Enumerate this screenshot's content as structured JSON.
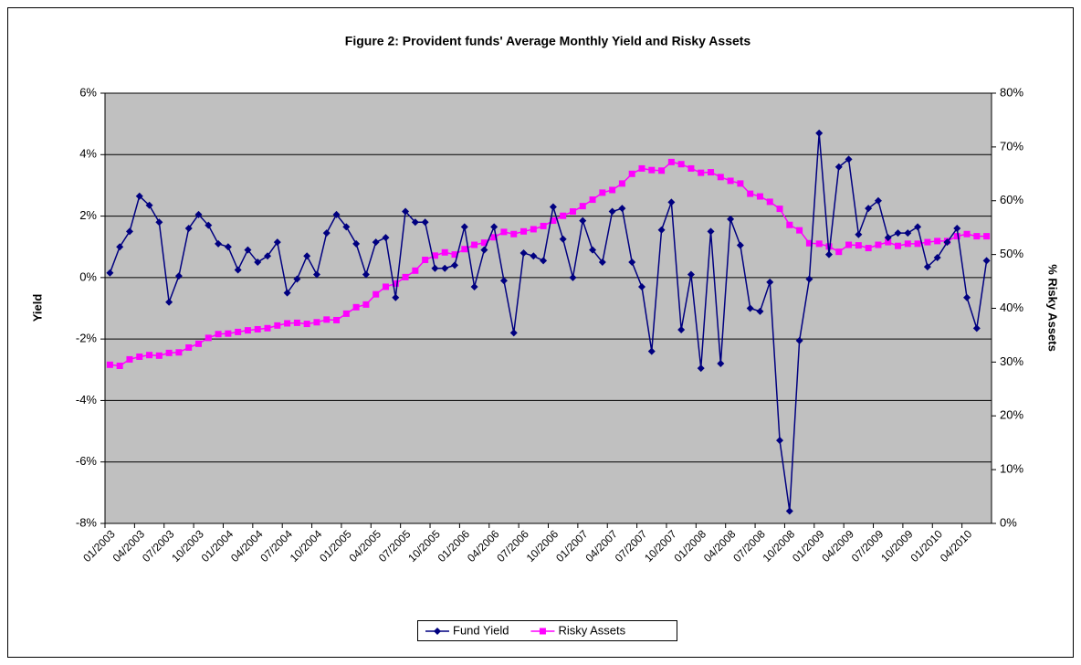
{
  "chart_data": {
    "type": "line",
    "title": "Figure 2: Provident funds' Average Monthly Yield and Risky Assets",
    "y_label": "Yield",
    "y2_label": "% Risky Assets",
    "categories": [
      "01/2003",
      null,
      null,
      "04/2003",
      null,
      null,
      "07/2003",
      null,
      null,
      "10/2003",
      null,
      null,
      "01/2004",
      null,
      null,
      "04/2004",
      null,
      null,
      "07/2004",
      null,
      null,
      "10/2004",
      null,
      null,
      "01/2005",
      null,
      null,
      "04/2005",
      null,
      null,
      "07/2005",
      null,
      null,
      "10/2005",
      null,
      null,
      "01/2006",
      null,
      null,
      "04/2006",
      null,
      null,
      "07/2006",
      null,
      null,
      "10/2006",
      null,
      null,
      "01/2007",
      null,
      null,
      "04/2007",
      null,
      null,
      "07/2007",
      null,
      null,
      "10/2007",
      null,
      null,
      "01/2008",
      null,
      null,
      "04/2008",
      null,
      null,
      "07/2008",
      null,
      null,
      "10/2008",
      null,
      null,
      "01/2009",
      null,
      null,
      "04/2009",
      null,
      null,
      "07/2009",
      null,
      null,
      "10/2009",
      null,
      null,
      "01/2010",
      null,
      null,
      "04/2010",
      null,
      null
    ],
    "series": [
      {
        "name": "Fund Yield",
        "color": "#000080",
        "marker": "diamond",
        "values": [
          0.15,
          1.0,
          1.5,
          2.65,
          2.35,
          1.8,
          -0.8,
          0.05,
          1.6,
          2.05,
          1.7,
          1.1,
          1.0,
          0.25,
          0.9,
          0.5,
          0.7,
          1.15,
          -0.5,
          -0.05,
          0.7,
          0.1,
          1.45,
          2.05,
          1.65,
          1.1,
          0.1,
          1.15,
          1.3,
          -0.65,
          2.15,
          1.8,
          1.8,
          0.3,
          0.3,
          0.4,
          1.65,
          -0.3,
          0.9,
          1.65,
          -0.1,
          -1.8,
          0.8,
          0.7,
          0.55,
          2.3,
          1.25,
          0.0,
          1.85,
          0.9,
          0.5,
          2.15,
          2.25,
          0.5,
          -0.3,
          -2.4,
          1.55,
          2.45,
          -1.7,
          0.1,
          -2.95,
          1.5,
          -2.8,
          1.9,
          1.05,
          -1.0,
          -1.1,
          -0.15,
          -5.3,
          -7.6,
          -2.05,
          -0.05,
          4.7,
          0.75,
          3.6,
          3.85,
          1.4,
          2.25,
          2.5,
          1.3,
          1.45,
          1.45,
          1.65,
          0.35,
          0.65,
          1.15,
          1.6,
          -0.65,
          -1.65,
          0.55
        ]
      },
      {
        "name": "Risky Assets",
        "color": "#ff00ff",
        "marker": "square",
        "axis": "y2",
        "values": [
          29.5,
          29.3,
          30.5,
          31,
          31.3,
          31.2,
          31.7,
          31.8,
          32.7,
          33.4,
          34.5,
          35.2,
          35.3,
          35.6,
          35.9,
          36.1,
          36.3,
          36.8,
          37.2,
          37.3,
          37.1,
          37.4,
          37.9,
          37.8,
          39,
          40.2,
          40.7,
          42.6,
          44,
          44.6,
          45.8,
          47,
          49,
          49.8,
          50.4,
          50,
          51,
          51.8,
          52.2,
          53.2,
          54.2,
          53.8,
          54.3,
          54.7,
          55.3,
          56.3,
          57.2,
          58,
          59,
          60.2,
          61.5,
          62,
          63.2,
          65,
          66,
          65.7,
          65.6,
          67.2,
          66.8,
          66,
          65.2,
          65.3,
          64.4,
          63.7,
          63.2,
          61.3,
          60.8,
          59.8,
          58.5,
          55.5,
          54.5,
          52.1,
          52,
          51.5,
          50.5,
          51.8,
          51.7,
          51.2,
          51.8,
          52.3,
          51.6,
          52,
          52,
          52.3,
          52.5,
          52.5,
          53.4,
          53.8,
          53.4,
          53.4
        ]
      }
    ],
    "ylim": [
      -8,
      6
    ],
    "yticks": [
      {
        "value": -8,
        "label": "-8%"
      },
      {
        "value": -6,
        "label": "-6%"
      },
      {
        "value": -4,
        "label": "-4%"
      },
      {
        "value": -2,
        "label": "-2%"
      },
      {
        "value": 0,
        "label": "0%"
      },
      {
        "value": 2,
        "label": "2%"
      },
      {
        "value": 4,
        "label": "4%"
      },
      {
        "value": 6,
        "label": "6%"
      }
    ],
    "y2lim": [
      0,
      80
    ],
    "y2ticks": [
      {
        "value": 0,
        "label": "0%"
      },
      {
        "value": 10,
        "label": "10%"
      },
      {
        "value": 20,
        "label": "20%"
      },
      {
        "value": 30,
        "label": "30%"
      },
      {
        "value": 40,
        "label": "40%"
      },
      {
        "value": 50,
        "label": "50%"
      },
      {
        "value": 60,
        "label": "60%"
      },
      {
        "value": 70,
        "label": "70%"
      },
      {
        "value": 80,
        "label": "80%"
      }
    ],
    "grid": true,
    "plot_background": "#c0c0c0",
    "legend": "bottom"
  }
}
